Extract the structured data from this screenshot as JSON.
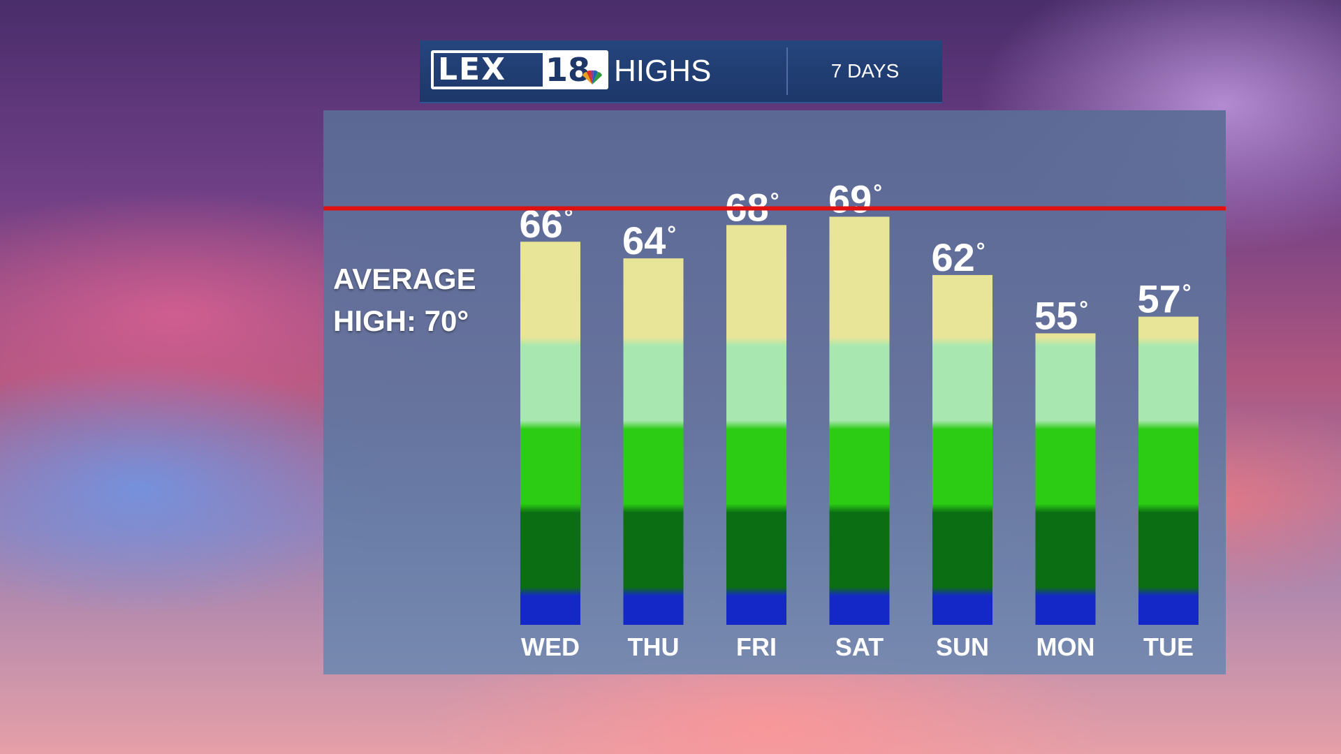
{
  "header": {
    "logo_text": "LEX",
    "logo_number": "18",
    "title": "HIGHS",
    "period": "7 DAYS"
  },
  "average": {
    "line1": "AVERAGE",
    "line2": "HIGH: 70°",
    "line_color": "#e01010"
  },
  "chart_data": {
    "type": "bar",
    "categories": [
      "WED",
      "THU",
      "FRI",
      "SAT",
      "SUN",
      "MON",
      "TUE"
    ],
    "values": [
      66,
      64,
      68,
      69,
      62,
      55,
      57
    ],
    "value_labels": [
      "66",
      "64",
      "68",
      "69",
      "62",
      "55",
      "57"
    ],
    "unit_symbol": "°",
    "title": "HIGHS",
    "reference_line": {
      "value": 70,
      "label": "AVERAGE HIGH: 70°"
    },
    "color_bands": [
      {
        "from": 20,
        "to": 24,
        "color": "#1428c8"
      },
      {
        "from": 24,
        "to": 34,
        "color": "#0b6e12"
      },
      {
        "from": 34,
        "to": 44,
        "color": "#2ccc14"
      },
      {
        "from": 44,
        "to": 54,
        "color": "#a8e8b0"
      },
      {
        "from": 54,
        "to": 64,
        "color": "#e8e498"
      }
    ],
    "grid": false
  }
}
